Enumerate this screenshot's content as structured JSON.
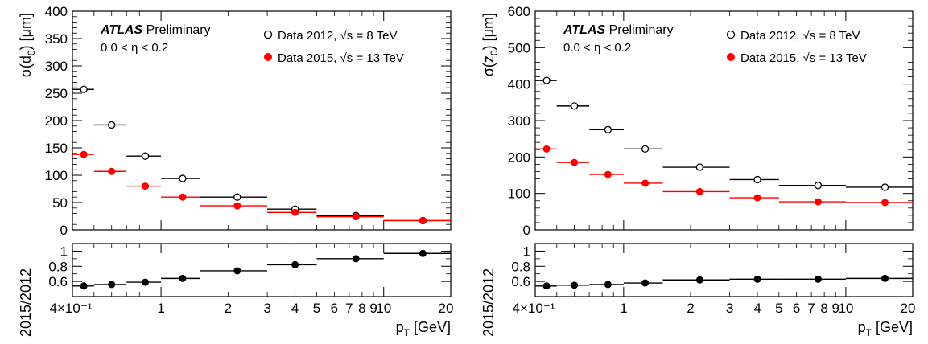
{
  "colors": {
    "y2012": "#000000",
    "y2015": "#ff0000",
    "axis": "#000000"
  },
  "chart_data": [
    {
      "type": "scatter",
      "title": "",
      "experiment": "ATLAS",
      "status": "Preliminary",
      "region": "0.0 < η < 0.2",
      "xlabel_main": "p",
      "xlabel_sub": "T",
      "xlabel_unit": "[GeV]",
      "xscale": "log",
      "xlim": [
        0.4,
        20
      ],
      "x_tick_labels": [
        "4×10⁻¹",
        "1",
        "2",
        "3",
        "4",
        "5",
        "6",
        "7",
        "8",
        "9",
        "10",
        "20"
      ],
      "x_tick_values": [
        0.4,
        1,
        2,
        3,
        4,
        5,
        6,
        7,
        8,
        9,
        10,
        20
      ],
      "bins": [
        [
          0.4,
          0.5
        ],
        [
          0.5,
          0.7
        ],
        [
          0.7,
          1.0
        ],
        [
          1.0,
          1.5
        ],
        [
          1.5,
          3.0
        ],
        [
          3.0,
          5.0
        ],
        [
          5.0,
          10.0
        ],
        [
          10.0,
          20.0
        ]
      ],
      "x": [
        0.45,
        0.6,
        0.85,
        1.25,
        2.2,
        4.0,
        7.5,
        15.0
      ],
      "ylabel_main": "σ(d",
      "ylabel_sub": "0",
      "ylabel_unit": ") [μm]",
      "ylim": [
        0,
        400
      ],
      "y_ticks": [
        "0",
        "50",
        "100",
        "150",
        "200",
        "250",
        "300",
        "350",
        "400"
      ],
      "legend_position": "top-right",
      "series": [
        {
          "name": "Data 2012, √s = 8 TeV",
          "marker": "open-circle",
          "color": "#000000",
          "values": [
            257,
            192,
            135,
            94,
            60,
            38,
            26,
            17
          ]
        },
        {
          "name": "Data 2015, √s = 13 TeV",
          "marker": "filled-circle",
          "color": "#ff0000",
          "values": [
            138,
            107,
            80,
            60,
            44,
            32,
            24,
            17
          ]
        }
      ],
      "ratio": {
        "ylabel": "2015/2012",
        "ylim": [
          0.4,
          1.1
        ],
        "y_ticks": [
          "0.6",
          "0.8",
          "1"
        ],
        "values": [
          0.54,
          0.56,
          0.59,
          0.64,
          0.74,
          0.82,
          0.9,
          0.97
        ]
      }
    },
    {
      "type": "scatter",
      "title": "",
      "experiment": "ATLAS",
      "status": "Preliminary",
      "region": "0.0 < η < 0.2",
      "xlabel_main": "p",
      "xlabel_sub": "T",
      "xlabel_unit": "[GeV]",
      "xscale": "log",
      "xlim": [
        0.4,
        20
      ],
      "x_tick_labels": [
        "4×10⁻¹",
        "1",
        "2",
        "3",
        "4",
        "5",
        "6",
        "7",
        "8",
        "9",
        "10",
        "20"
      ],
      "x_tick_values": [
        0.4,
        1,
        2,
        3,
        4,
        5,
        6,
        7,
        8,
        9,
        10,
        20
      ],
      "bins": [
        [
          0.4,
          0.5
        ],
        [
          0.5,
          0.7
        ],
        [
          0.7,
          1.0
        ],
        [
          1.0,
          1.5
        ],
        [
          1.5,
          3.0
        ],
        [
          3.0,
          5.0
        ],
        [
          5.0,
          10.0
        ],
        [
          10.0,
          20.0
        ]
      ],
      "x": [
        0.45,
        0.6,
        0.85,
        1.25,
        2.2,
        4.0,
        7.5,
        15.0
      ],
      "ylabel_main": "σ(z",
      "ylabel_sub": "0",
      "ylabel_unit": ") [μm]",
      "ylim": [
        0,
        600
      ],
      "y_ticks": [
        "0",
        "100",
        "200",
        "300",
        "400",
        "500",
        "600"
      ],
      "legend_position": "top-right",
      "series": [
        {
          "name": "Data 2012, √s = 8 TeV",
          "marker": "open-circle",
          "color": "#000000",
          "values": [
            410,
            340,
            275,
            222,
            172,
            138,
            122,
            117
          ]
        },
        {
          "name": "Data 2015, √s = 13 TeV",
          "marker": "filled-circle",
          "color": "#ff0000",
          "values": [
            222,
            185,
            152,
            128,
            105,
            88,
            77,
            75
          ]
        }
      ],
      "ratio": {
        "ylabel": "2015/2012",
        "ylim": [
          0.4,
          1.1
        ],
        "y_ticks": [
          "0.6",
          "0.8",
          "1"
        ],
        "values": [
          0.54,
          0.55,
          0.56,
          0.58,
          0.62,
          0.63,
          0.63,
          0.64
        ]
      }
    }
  ]
}
